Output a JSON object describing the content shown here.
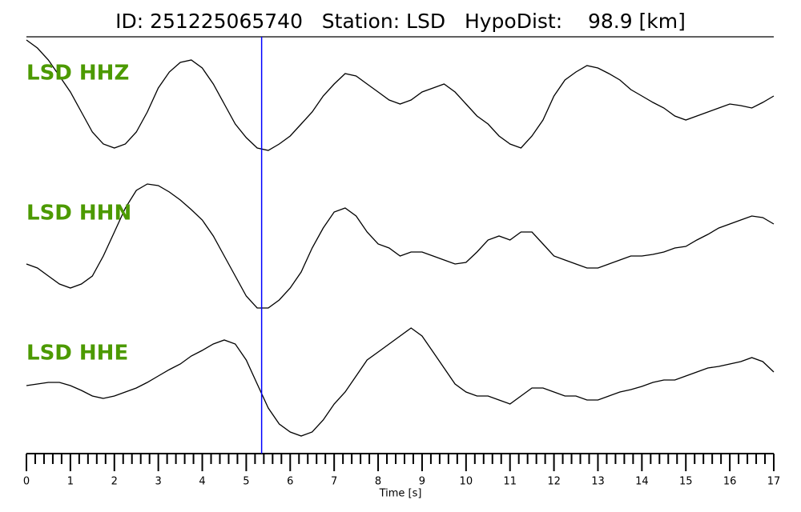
{
  "chart_data": {
    "type": "line",
    "title": "ID: 251225065740   Station: LSD   HypoDist:    98.9 [km]",
    "x_label": "Time [s]",
    "xlim": [
      0,
      17
    ],
    "xticks": [
      0,
      1,
      2,
      3,
      4,
      5,
      6,
      7,
      8,
      9,
      10,
      11,
      12,
      13,
      14,
      15,
      16,
      17
    ],
    "xminorticks": [
      0.2,
      0.4,
      0.6,
      0.8,
      1.2,
      1.4,
      1.6,
      1.8,
      2.2,
      2.4,
      2.6,
      2.8,
      3.2,
      3.4,
      3.6,
      3.8,
      4.2,
      4.4,
      4.6,
      4.8,
      5.2,
      5.4,
      5.6,
      5.8,
      6.2,
      6.4,
      6.6,
      6.8,
      7.2,
      7.4,
      7.6,
      7.8,
      8.2,
      8.4,
      8.6,
      8.8,
      9.2,
      9.4,
      9.6,
      9.8,
      10.2,
      10.4,
      10.6,
      10.8,
      11.2,
      11.4,
      11.6,
      11.8,
      12.2,
      12.4,
      12.6,
      12.8,
      13.2,
      13.4,
      13.6,
      13.8,
      14.2,
      14.4,
      14.6,
      14.8,
      15.2,
      15.4,
      15.6,
      15.8,
      16.2,
      16.4,
      16.6,
      16.8
    ],
    "ylim": [
      -100,
      100
    ],
    "pick_x": 5.35,
    "pick_color": "#0000ff",
    "label_color": "#4c9a00",
    "x": [
      0,
      0.25,
      0.5,
      0.75,
      1,
      1.25,
      1.5,
      1.75,
      2,
      2.25,
      2.5,
      2.75,
      3,
      3.25,
      3.5,
      3.75,
      4,
      4.25,
      4.5,
      4.75,
      5,
      5.25,
      5.5,
      5.75,
      6,
      6.25,
      6.5,
      6.75,
      7,
      7.25,
      7.5,
      7.75,
      8,
      8.25,
      8.5,
      8.75,
      9,
      9.25,
      9.5,
      9.75,
      10,
      10.25,
      10.5,
      10.75,
      11,
      11.25,
      11.5,
      11.75,
      12,
      12.25,
      12.5,
      12.75,
      13,
      13.25,
      13.5,
      13.75,
      14,
      14.25,
      14.5,
      14.75,
      15,
      15.25,
      15.5,
      15.75,
      16,
      16.25,
      16.5,
      16.75,
      17
    ],
    "series": [
      {
        "name": "LSD HHZ",
        "color": "#000000",
        "values": [
          80,
          70,
          55,
          35,
          15,
          -10,
          -35,
          -50,
          -55,
          -50,
          -35,
          -10,
          20,
          40,
          52,
          55,
          45,
          25,
          0,
          -25,
          -42,
          -55,
          -58,
          -50,
          -40,
          -25,
          -10,
          10,
          25,
          38,
          35,
          25,
          15,
          5,
          0,
          5,
          15,
          20,
          25,
          15,
          0,
          -15,
          -25,
          -40,
          -50,
          -55,
          -40,
          -20,
          10,
          30,
          40,
          48,
          45,
          38,
          30,
          18,
          10,
          2,
          -5,
          -15,
          -20,
          -15,
          -10,
          -5,
          0,
          -2,
          -5,
          2,
          10
        ]
      },
      {
        "name": "LSD HHN",
        "color": "#000000",
        "values": [
          -25,
          -30,
          -40,
          -50,
          -55,
          -50,
          -40,
          -15,
          15,
          45,
          67,
          75,
          73,
          65,
          55,
          43,
          30,
          10,
          -15,
          -40,
          -65,
          -80,
          -80,
          -70,
          -55,
          -35,
          -5,
          20,
          40,
          45,
          35,
          15,
          0,
          -5,
          -15,
          -10,
          -10,
          -15,
          -20,
          -25,
          -23,
          -10,
          5,
          10,
          5,
          15,
          15,
          0,
          -15,
          -20,
          -25,
          -30,
          -30,
          -25,
          -20,
          -15,
          -15,
          -13,
          -10,
          -5,
          -3,
          5,
          12,
          20,
          25,
          30,
          35,
          33,
          25
        ]
      },
      {
        "name": "LSD HHE",
        "color": "#000000",
        "values": [
          -2,
          0,
          2,
          2,
          -2,
          -8,
          -15,
          -18,
          -15,
          -10,
          -5,
          2,
          10,
          18,
          25,
          35,
          42,
          50,
          55,
          50,
          30,
          0,
          -30,
          -50,
          -60,
          -65,
          -60,
          -45,
          -25,
          -10,
          10,
          30,
          40,
          50,
          60,
          70,
          60,
          40,
          20,
          0,
          -10,
          -15,
          -15,
          -20,
          -25,
          -15,
          -5,
          -5,
          -10,
          -15,
          -15,
          -20,
          -20,
          -15,
          -10,
          -7,
          -3,
          2,
          5,
          5,
          10,
          15,
          20,
          22,
          25,
          28,
          33,
          28,
          15
        ]
      }
    ]
  }
}
